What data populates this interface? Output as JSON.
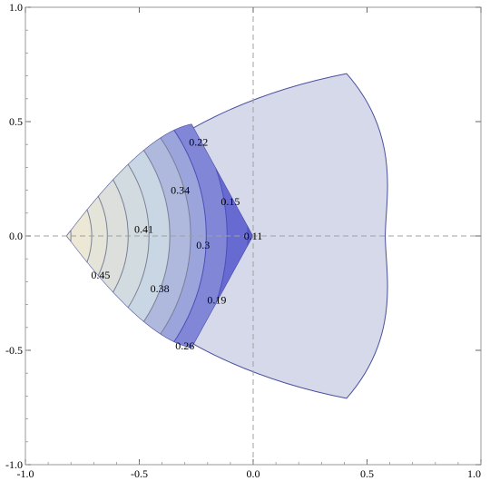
{
  "chart_data": {
    "type": "contour",
    "title": "",
    "xlabel": "",
    "ylabel": "",
    "xlim": [
      -1.0,
      1.0
    ],
    "ylim": [
      -1.0,
      1.0
    ],
    "grid": false,
    "reference_lines": {
      "x": 0.0,
      "y": 0.0,
      "style": "dashed"
    },
    "x_ticks": {
      "labels": [
        "-1.0",
        "-0.5",
        "0.0",
        "0.5",
        "1.0"
      ],
      "values": [
        -1.0,
        -0.5,
        0.0,
        0.5,
        1.0
      ]
    },
    "y_ticks": {
      "labels": [
        "-1.0",
        "-0.5",
        "0.0",
        "0.5",
        "1.0"
      ],
      "values": [
        -1.0,
        -0.5,
        0.0,
        0.5,
        1.0
      ]
    },
    "region": {
      "description_vertices": [
        [
          -0.82,
          0.0
        ],
        [
          0.41,
          0.71
        ],
        [
          0.41,
          -0.71
        ]
      ],
      "right_arc_apex": [
        0.58,
        0.0
      ],
      "fill_color": "#d6d9ea",
      "edge_color": "#4a4f9c"
    },
    "contour_region_vertices": [
      [
        -0.82,
        0.0
      ],
      [
        -0.27,
        0.49
      ],
      [
        0.0,
        0.0
      ],
      [
        -0.27,
        -0.49
      ]
    ],
    "contour_levels": [
      0.45,
      0.41,
      0.38,
      0.34,
      0.3,
      0.26,
      0.22,
      0.19,
      0.15,
      0.11
    ],
    "contour_labels": [
      {
        "text": "0.45",
        "x": -0.67,
        "y": -0.17
      },
      {
        "text": "0.41",
        "x": -0.48,
        "y": 0.03
      },
      {
        "text": "0.38",
        "x": -0.41,
        "y": -0.23
      },
      {
        "text": "0.34",
        "x": -0.32,
        "y": 0.2
      },
      {
        "text": "0.3",
        "x": -0.22,
        "y": -0.04
      },
      {
        "text": "0.26",
        "x": -0.3,
        "y": -0.48
      },
      {
        "text": "0.22",
        "x": -0.24,
        "y": 0.41
      },
      {
        "text": "0.19",
        "x": -0.16,
        "y": -0.28
      },
      {
        "text": "0.15",
        "x": -0.1,
        "y": 0.15
      },
      {
        "text": "0.11",
        "x": 0.0,
        "y": -0.0
      }
    ],
    "colormap": {
      "high": "#f1ead3",
      "mid": "#c9d6e3",
      "low": "#5a5ccf"
    }
  }
}
